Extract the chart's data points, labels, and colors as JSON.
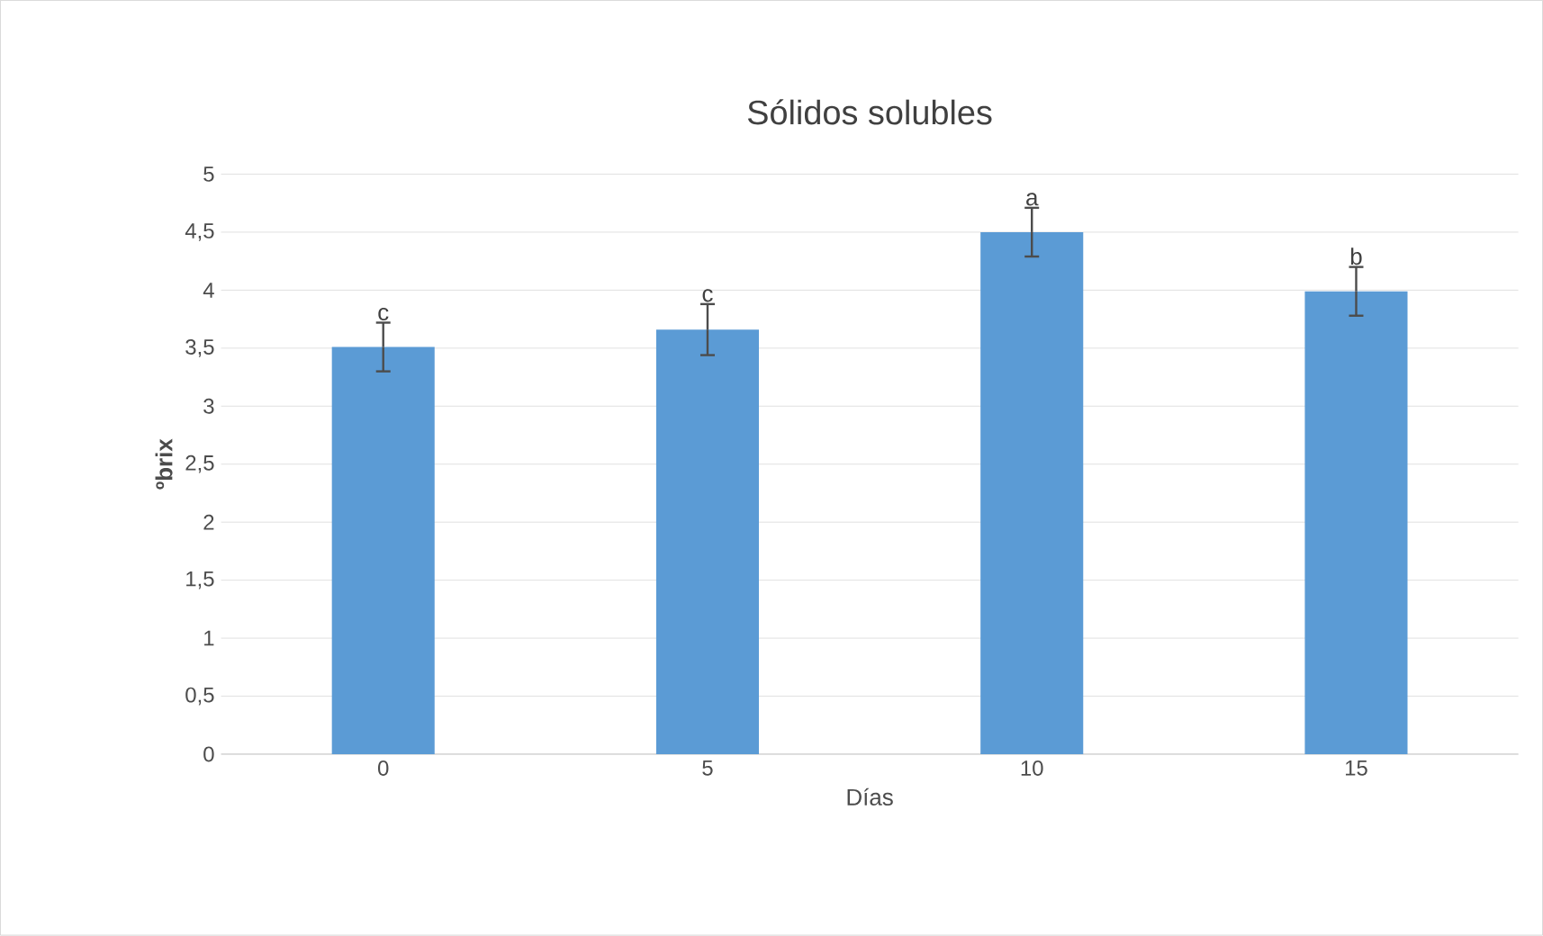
{
  "chart_data": {
    "type": "bar",
    "title": "Sólidos solubles",
    "xlabel": "Días",
    "ylabel": "ºbrix",
    "categories": [
      "0",
      "5",
      "10",
      "15"
    ],
    "values": [
      3.51,
      3.66,
      4.5,
      3.99
    ],
    "errors": [
      0.21,
      0.22,
      0.21,
      0.21
    ],
    "color": "#5b9bd5",
    "ylim": [
      0,
      5
    ],
    "yticks": [
      0,
      {
        "value": 0.5,
        "label": "0,5"
      },
      1,
      {
        "value": 1.5,
        "label": "1,5"
      },
      2,
      {
        "value": 2.5,
        "label": "2,5"
      },
      3,
      {
        "value": 3.5,
        "label": "3,5"
      },
      4,
      {
        "value": 4.5,
        "label": "4,5"
      },
      5
    ],
    "grid": "y",
    "annotations": [
      {
        "text": "c",
        "x": "0",
        "y": 3.72
      },
      {
        "text": "c",
        "x": "5",
        "y": 3.88
      },
      {
        "text": "a",
        "x": "10",
        "y": 4.71
      },
      {
        "text": "b",
        "x": "15",
        "y": 4.2
      }
    ]
  }
}
